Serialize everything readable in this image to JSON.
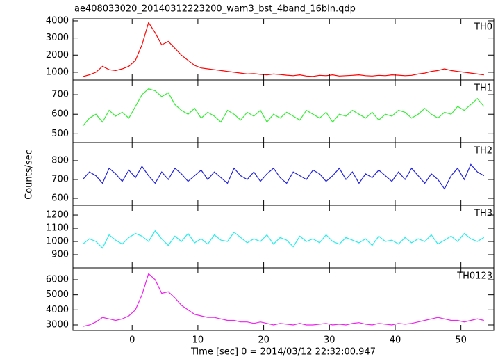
{
  "title": "ae408033020_20140312223200_wam3_bst_4band_16bin.qdp",
  "ylabel": "Counts/sec",
  "xlabel": "Time [sec] 0 = 2014/03/12 22:32:00.947",
  "chart_data": [
    {
      "type": "line",
      "label": "TH0",
      "xlim": [
        -9,
        55
      ],
      "ylim": [
        550,
        4120
      ],
      "yticks": [
        1000,
        2000,
        3000,
        4000
      ],
      "x": [
        -7.5,
        -6.5,
        -5.5,
        -4.5,
        -3.5,
        -2.5,
        -1.5,
        -0.5,
        0.5,
        1.5,
        2.5,
        3.5,
        4.5,
        5.5,
        6.5,
        7.5,
        8.5,
        9.5,
        10.5,
        11.5,
        12.5,
        13.5,
        14.5,
        15.5,
        16.5,
        17.5,
        18.5,
        19.5,
        20.5,
        21.5,
        22.5,
        23.5,
        24.5,
        25.5,
        26.5,
        27.5,
        28.5,
        29.5,
        30.5,
        31.5,
        32.5,
        33.5,
        34.5,
        35.5,
        36.5,
        37.5,
        38.5,
        39.5,
        40.5,
        41.5,
        42.5,
        43.5,
        44.5,
        45.5,
        46.5,
        47.5,
        48.5,
        49.5,
        50.5,
        51.5,
        52.5,
        53.5
      ],
      "series": [
        {
          "color": "#ff0000",
          "values": [
            750,
            850,
            1000,
            1350,
            1150,
            1100,
            1200,
            1350,
            1700,
            2600,
            3900,
            3300,
            2600,
            2800,
            2400,
            2000,
            1700,
            1400,
            1250,
            1200,
            1150,
            1100,
            1050,
            1000,
            950,
            900,
            920,
            880,
            850,
            900,
            870,
            830,
            800,
            850,
            780,
            760,
            820,
            800,
            850,
            780,
            800,
            820,
            850,
            800,
            780,
            820,
            800,
            850,
            830,
            800,
            820,
            900,
            950,
            1050,
            1100,
            1200,
            1100,
            1050,
            1000,
            950,
            900,
            850
          ]
        }
      ]
    },
    {
      "type": "line",
      "label": "TH1",
      "xlim": [
        -9,
        55
      ],
      "ylim": [
        455,
        775
      ],
      "yticks": [
        500,
        600,
        700
      ],
      "x": [
        -7.5,
        -6.5,
        -5.5,
        -4.5,
        -3.5,
        -2.5,
        -1.5,
        -0.5,
        0.5,
        1.5,
        2.5,
        3.5,
        4.5,
        5.5,
        6.5,
        7.5,
        8.5,
        9.5,
        10.5,
        11.5,
        12.5,
        13.5,
        14.5,
        15.5,
        16.5,
        17.5,
        18.5,
        19.5,
        20.5,
        21.5,
        22.5,
        23.5,
        24.5,
        25.5,
        26.5,
        27.5,
        28.5,
        29.5,
        30.5,
        31.5,
        32.5,
        33.5,
        34.5,
        35.5,
        36.5,
        37.5,
        38.5,
        39.5,
        40.5,
        41.5,
        42.5,
        43.5,
        44.5,
        45.5,
        46.5,
        47.5,
        48.5,
        49.5,
        50.5,
        51.5,
        52.5,
        53.5
      ],
      "series": [
        {
          "color": "#33ee33",
          "values": [
            540,
            580,
            600,
            560,
            620,
            590,
            610,
            580,
            640,
            700,
            730,
            720,
            690,
            710,
            650,
            620,
            600,
            630,
            580,
            610,
            590,
            560,
            620,
            600,
            570,
            610,
            590,
            620,
            560,
            600,
            580,
            610,
            590,
            570,
            620,
            600,
            580,
            610,
            560,
            600,
            590,
            620,
            600,
            580,
            610,
            570,
            600,
            590,
            620,
            610,
            580,
            600,
            630,
            600,
            580,
            610,
            600,
            640,
            620,
            650,
            680,
            640
          ]
        }
      ]
    },
    {
      "type": "line",
      "label": "TH2",
      "xlim": [
        -9,
        55
      ],
      "ylim": [
        563,
        896
      ],
      "yticks": [
        600,
        700,
        800
      ],
      "x": [
        -7.5,
        -6.5,
        -5.5,
        -4.5,
        -3.5,
        -2.5,
        -1.5,
        -0.5,
        0.5,
        1.5,
        2.5,
        3.5,
        4.5,
        5.5,
        6.5,
        7.5,
        8.5,
        9.5,
        10.5,
        11.5,
        12.5,
        13.5,
        14.5,
        15.5,
        16.5,
        17.5,
        18.5,
        19.5,
        20.5,
        21.5,
        22.5,
        23.5,
        24.5,
        25.5,
        26.5,
        27.5,
        28.5,
        29.5,
        30.5,
        31.5,
        32.5,
        33.5,
        34.5,
        35.5,
        36.5,
        37.5,
        38.5,
        39.5,
        40.5,
        41.5,
        42.5,
        43.5,
        44.5,
        45.5,
        46.5,
        47.5,
        48.5,
        49.5,
        50.5,
        51.5,
        52.5,
        53.5
      ],
      "series": [
        {
          "color": "#2222dd",
          "values": [
            700,
            740,
            720,
            680,
            760,
            730,
            690,
            750,
            710,
            770,
            720,
            680,
            740,
            700,
            760,
            730,
            690,
            720,
            750,
            700,
            740,
            710,
            680,
            760,
            720,
            700,
            740,
            690,
            730,
            760,
            710,
            680,
            740,
            720,
            700,
            750,
            730,
            690,
            720,
            760,
            700,
            740,
            680,
            730,
            710,
            750,
            720,
            690,
            740,
            700,
            760,
            720,
            680,
            730,
            700,
            650,
            720,
            760,
            700,
            780,
            740,
            720
          ]
        }
      ]
    },
    {
      "type": "line",
      "label": "TH3",
      "xlim": [
        -9,
        55
      ],
      "ylim": [
        800,
        1274
      ],
      "yticks": [
        900,
        1000,
        1100,
        1200
      ],
      "x": [
        -7.5,
        -6.5,
        -5.5,
        -4.5,
        -3.5,
        -2.5,
        -1.5,
        -0.5,
        0.5,
        1.5,
        2.5,
        3.5,
        4.5,
        5.5,
        6.5,
        7.5,
        8.5,
        9.5,
        10.5,
        11.5,
        12.5,
        13.5,
        14.5,
        15.5,
        16.5,
        17.5,
        18.5,
        19.5,
        20.5,
        21.5,
        22.5,
        23.5,
        24.5,
        25.5,
        26.5,
        27.5,
        28.5,
        29.5,
        30.5,
        31.5,
        32.5,
        33.5,
        34.5,
        35.5,
        36.5,
        37.5,
        38.5,
        39.5,
        40.5,
        41.5,
        42.5,
        43.5,
        44.5,
        45.5,
        46.5,
        47.5,
        48.5,
        49.5,
        50.5,
        51.5,
        52.5,
        53.5
      ],
      "series": [
        {
          "color": "#22eeee",
          "values": [
            980,
            1020,
            1000,
            950,
            1050,
            1010,
            980,
            1030,
            1060,
            1040,
            1000,
            1080,
            1020,
            970,
            1040,
            1000,
            1060,
            990,
            1020,
            980,
            1050,
            1010,
            1000,
            1070,
            1030,
            990,
            1020,
            1000,
            1050,
            980,
            1030,
            1010,
            960,
            1040,
            1000,
            1020,
            990,
            1050,
            1000,
            980,
            1030,
            1010,
            990,
            1020,
            970,
            1040,
            1000,
            1010,
            980,
            1030,
            990,
            1020,
            1000,
            1050,
            980,
            1010,
            1040,
            1000,
            1060,
            1020,
            1000,
            1030
          ]
        }
      ]
    },
    {
      "type": "line",
      "label": "TH0123",
      "xlim": [
        -9,
        55
      ],
      "ylim": [
        2630,
        6785
      ],
      "yticks": [
        3000,
        4000,
        5000,
        6000
      ],
      "xticks": [
        0,
        10,
        20,
        30,
        40,
        50
      ],
      "x": [
        -7.5,
        -6.5,
        -5.5,
        -4.5,
        -3.5,
        -2.5,
        -1.5,
        -0.5,
        0.5,
        1.5,
        2.5,
        3.5,
        4.5,
        5.5,
        6.5,
        7.5,
        8.5,
        9.5,
        10.5,
        11.5,
        12.5,
        13.5,
        14.5,
        15.5,
        16.5,
        17.5,
        18.5,
        19.5,
        20.5,
        21.5,
        22.5,
        23.5,
        24.5,
        25.5,
        26.5,
        27.5,
        28.5,
        29.5,
        30.5,
        31.5,
        32.5,
        33.5,
        34.5,
        35.5,
        36.5,
        37.5,
        38.5,
        39.5,
        40.5,
        41.5,
        42.5,
        43.5,
        44.5,
        45.5,
        46.5,
        47.5,
        48.5,
        49.5,
        50.5,
        51.5,
        52.5,
        53.5
      ],
      "series": [
        {
          "color": "#ee22ee",
          "values": [
            2900,
            3000,
            3200,
            3500,
            3400,
            3300,
            3400,
            3600,
            4000,
            5000,
            6400,
            6000,
            5100,
            5200,
            4800,
            4300,
            4000,
            3700,
            3600,
            3500,
            3500,
            3400,
            3300,
            3300,
            3200,
            3200,
            3100,
            3200,
            3100,
            3000,
            3100,
            3050,
            3000,
            3100,
            3000,
            3000,
            3050,
            3100,
            3000,
            3050,
            3000,
            3100,
            3150,
            3050,
            3000,
            3100,
            3050,
            3000,
            3100,
            3050,
            3100,
            3200,
            3300,
            3400,
            3500,
            3400,
            3300,
            3300,
            3200,
            3300,
            3400,
            3300
          ]
        }
      ]
    }
  ]
}
